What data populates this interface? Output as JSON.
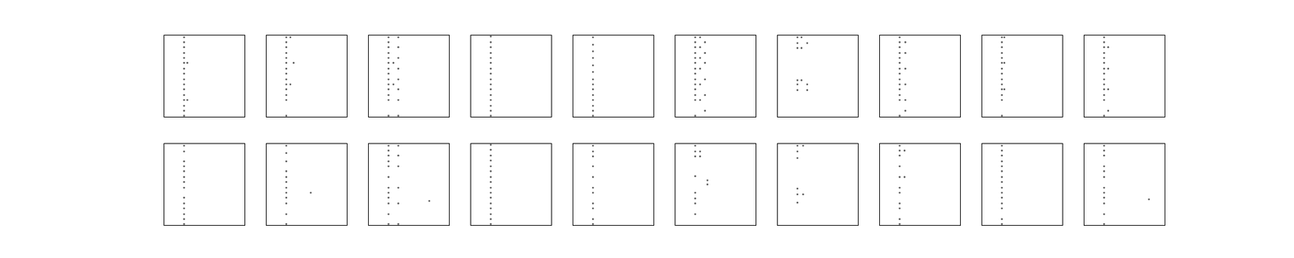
{
  "chart_data": [
    {
      "type": "scatter",
      "xlim": [
        0,
        100
      ],
      "ylim": [
        0,
        100
      ],
      "tick_labels": false,
      "color": "#555555",
      "x": [
        25,
        25,
        25,
        25,
        25,
        25,
        25,
        25,
        25,
        25,
        25,
        25,
        25,
        25,
        25,
        25,
        29,
        29
      ],
      "y": [
        97,
        91,
        85,
        78,
        72,
        66,
        59,
        53,
        46,
        40,
        34,
        27,
        21,
        14,
        8,
        2,
        66,
        21
      ]
    },
    {
      "type": "scatter",
      "xlim": [
        0,
        100
      ],
      "ylim": [
        0,
        100
      ],
      "tick_labels": false,
      "color": "#555555",
      "x": [
        25,
        25,
        25,
        25,
        25,
        25,
        25,
        25,
        25,
        25,
        25,
        25,
        25,
        25,
        30,
        30,
        34
      ],
      "y": [
        97,
        91,
        85,
        78,
        72,
        66,
        59,
        53,
        46,
        40,
        34,
        27,
        21,
        2,
        97,
        40,
        66
      ]
    },
    {
      "type": "scatter",
      "xlim": [
        0,
        100
      ],
      "ylim": [
        0,
        100
      ],
      "tick_labels": false,
      "color": "#555555",
      "x": [
        25,
        25,
        25,
        25,
        25,
        25,
        25,
        25,
        25,
        25,
        25,
        25,
        25,
        25,
        37,
        37,
        37,
        37,
        37,
        37,
        37,
        37,
        31,
        31
      ],
      "y": [
        97,
        91,
        85,
        78,
        72,
        66,
        59,
        53,
        46,
        40,
        34,
        27,
        21,
        2,
        97,
        85,
        72,
        59,
        46,
        34,
        21,
        2,
        66,
        40
      ]
    },
    {
      "type": "scatter",
      "xlim": [
        0,
        100
      ],
      "ylim": [
        0,
        100
      ],
      "tick_labels": false,
      "color": "#555555",
      "x": [
        25,
        25,
        25,
        25,
        25,
        25,
        25,
        25,
        25,
        25,
        25,
        25,
        25,
        25,
        25,
        25
      ],
      "y": [
        98,
        91,
        85,
        78,
        72,
        66,
        59,
        53,
        46,
        40,
        34,
        27,
        21,
        14,
        8,
        2
      ]
    },
    {
      "type": "scatter",
      "xlim": [
        0,
        100
      ],
      "ylim": [
        0,
        100
      ],
      "tick_labels": false,
      "color": "#555555",
      "x": [
        25,
        25,
        25,
        25,
        25,
        25,
        25,
        25,
        25,
        25,
        25,
        25,
        25,
        25
      ],
      "y": [
        97,
        88,
        80,
        72,
        63,
        55,
        46,
        40,
        34,
        27,
        21,
        14,
        8,
        2
      ]
    },
    {
      "type": "scatter",
      "xlim": [
        0,
        100
      ],
      "ylim": [
        0,
        100
      ],
      "tick_labels": false,
      "color": "#555555",
      "x": [
        25,
        25,
        25,
        25,
        25,
        25,
        25,
        25,
        25,
        25,
        25,
        25,
        25,
        25,
        31,
        31,
        31,
        31,
        31,
        31,
        37,
        37,
        37,
        37,
        37,
        37
      ],
      "y": [
        97,
        91,
        85,
        78,
        72,
        66,
        59,
        53,
        46,
        40,
        34,
        27,
        21,
        2,
        97,
        85,
        72,
        59,
        40,
        21,
        91,
        78,
        66,
        46,
        27,
        8
      ]
    },
    {
      "type": "scatter",
      "xlim": [
        0,
        100
      ],
      "ylim": [
        0,
        100
      ],
      "tick_labels": false,
      "color": "#555555",
      "x": [
        25,
        25,
        25,
        30,
        30,
        37,
        25,
        25,
        25,
        30,
        37,
        37
      ],
      "y": [
        97,
        90,
        84,
        97,
        84,
        90,
        45,
        40,
        33,
        45,
        40,
        33
      ]
    },
    {
      "type": "scatter",
      "xlim": [
        0,
        100
      ],
      "ylim": [
        0,
        100
      ],
      "tick_labels": false,
      "color": "#555555",
      "x": [
        25,
        25,
        25,
        25,
        25,
        25,
        25,
        25,
        25,
        25,
        25,
        25,
        25,
        25,
        32,
        32,
        32,
        32,
        32,
        32
      ],
      "y": [
        97,
        91,
        85,
        78,
        72,
        66,
        59,
        53,
        46,
        40,
        34,
        27,
        21,
        2,
        91,
        78,
        59,
        40,
        21,
        8
      ]
    },
    {
      "type": "scatter",
      "xlim": [
        0,
        100
      ],
      "ylim": [
        0,
        100
      ],
      "tick_labels": false,
      "color": "#555555",
      "x": [
        25,
        25,
        25,
        25,
        25,
        25,
        25,
        25,
        25,
        25,
        25,
        25,
        25,
        25,
        28,
        28,
        28
      ],
      "y": [
        97,
        91,
        85,
        78,
        72,
        66,
        59,
        53,
        46,
        40,
        34,
        27,
        21,
        2,
        97,
        66,
        34
      ]
    },
    {
      "type": "scatter",
      "xlim": [
        0,
        100
      ],
      "ylim": [
        0,
        100
      ],
      "tick_labels": false,
      "color": "#555555",
      "x": [
        25,
        25,
        25,
        25,
        25,
        25,
        25,
        25,
        25,
        25,
        25,
        25,
        25,
        25,
        30,
        30,
        30,
        30
      ],
      "y": [
        97,
        91,
        85,
        78,
        72,
        66,
        59,
        53,
        46,
        40,
        34,
        27,
        21,
        2,
        85,
        59,
        34,
        8
      ]
    },
    {
      "type": "scatter",
      "xlim": [
        0,
        100
      ],
      "ylim": [
        0,
        100
      ],
      "tick_labels": false,
      "color": "#555555",
      "x": [
        25,
        25,
        25,
        25,
        25,
        25,
        25,
        25,
        25,
        25,
        25,
        25,
        25,
        25
      ],
      "y": [
        97,
        90,
        78,
        72,
        66,
        59,
        53,
        46,
        34,
        27,
        21,
        14,
        8,
        2
      ]
    },
    {
      "type": "scatter",
      "xlim": [
        0,
        100
      ],
      "ylim": [
        0,
        100
      ],
      "tick_labels": false,
      "color": "#555555",
      "x": [
        25,
        25,
        25,
        25,
        25,
        25,
        25,
        25,
        25,
        25,
        25,
        25,
        55
      ],
      "y": [
        97,
        88,
        78,
        66,
        59,
        53,
        46,
        40,
        34,
        27,
        14,
        2,
        40
      ]
    },
    {
      "type": "scatter",
      "xlim": [
        0,
        100
      ],
      "ylim": [
        0,
        100
      ],
      "tick_labels": false,
      "color": "#555555",
      "x": [
        25,
        25,
        25,
        25,
        25,
        25,
        25,
        25,
        25,
        25,
        25,
        25,
        37,
        37,
        37,
        37,
        37,
        37,
        75
      ],
      "y": [
        97,
        91,
        85,
        78,
        72,
        59,
        46,
        40,
        34,
        27,
        14,
        2,
        97,
        85,
        72,
        46,
        27,
        2,
        30
      ]
    },
    {
      "type": "scatter",
      "xlim": [
        0,
        100
      ],
      "ylim": [
        0,
        100
      ],
      "tick_labels": false,
      "color": "#555555",
      "x": [
        25,
        25,
        25,
        25,
        25,
        25,
        25,
        25,
        25,
        25,
        25,
        25,
        25,
        25,
        25,
        25
      ],
      "y": [
        98,
        92,
        85,
        79,
        72,
        66,
        59,
        53,
        46,
        40,
        34,
        27,
        21,
        14,
        8,
        2
      ]
    },
    {
      "type": "scatter",
      "xlim": [
        0,
        100
      ],
      "ylim": [
        0,
        100
      ],
      "tick_labels": false,
      "color": "#555555",
      "x": [
        25,
        25,
        25,
        25,
        25,
        25,
        25,
        25,
        25,
        25,
        25
      ],
      "y": [
        97,
        90,
        84,
        72,
        59,
        46,
        40,
        27,
        21,
        8,
        2
      ]
    },
    {
      "type": "scatter",
      "xlim": [
        0,
        100
      ],
      "ylim": [
        0,
        100
      ],
      "tick_labels": false,
      "color": "#555555",
      "x": [
        25,
        25,
        25,
        25,
        25,
        25,
        25,
        25,
        31,
        31,
        40,
        40
      ],
      "y": [
        97,
        90,
        84,
        60,
        40,
        33,
        27,
        14,
        90,
        84,
        55,
        50
      ]
    },
    {
      "type": "scatter",
      "xlim": [
        0,
        100
      ],
      "ylim": [
        0,
        100
      ],
      "tick_labels": false,
      "color": "#555555",
      "x": [
        25,
        25,
        25,
        25,
        25,
        25,
        32,
        32
      ],
      "y": [
        97,
        90,
        82,
        45,
        38,
        28,
        97,
        38
      ]
    },
    {
      "type": "scatter",
      "xlim": [
        0,
        100
      ],
      "ylim": [
        0,
        100
      ],
      "tick_labels": false,
      "color": "#555555",
      "x": [
        25,
        25,
        25,
        25,
        25,
        25,
        25,
        25,
        25,
        25,
        25,
        31,
        31
      ],
      "y": [
        97,
        91,
        85,
        72,
        59,
        46,
        40,
        27,
        21,
        8,
        2,
        91,
        59
      ]
    },
    {
      "type": "scatter",
      "xlim": [
        0,
        100
      ],
      "ylim": [
        0,
        100
      ],
      "tick_labels": false,
      "color": "#555555",
      "x": [
        25,
        25,
        25,
        25,
        25,
        25,
        25,
        25,
        25,
        25,
        25,
        25,
        25,
        25,
        25
      ],
      "y": [
        97,
        91,
        85,
        78,
        72,
        66,
        59,
        53,
        46,
        40,
        34,
        27,
        21,
        8,
        2
      ]
    },
    {
      "type": "scatter",
      "xlim": [
        0,
        100
      ],
      "ylim": [
        0,
        100
      ],
      "tick_labels": false,
      "color": "#555555",
      "x": [
        25,
        25,
        25,
        25,
        25,
        25,
        25,
        25,
        25,
        25,
        25,
        25,
        80
      ],
      "y": [
        97,
        91,
        85,
        72,
        66,
        59,
        46,
        40,
        34,
        27,
        14,
        2,
        32
      ]
    }
  ]
}
